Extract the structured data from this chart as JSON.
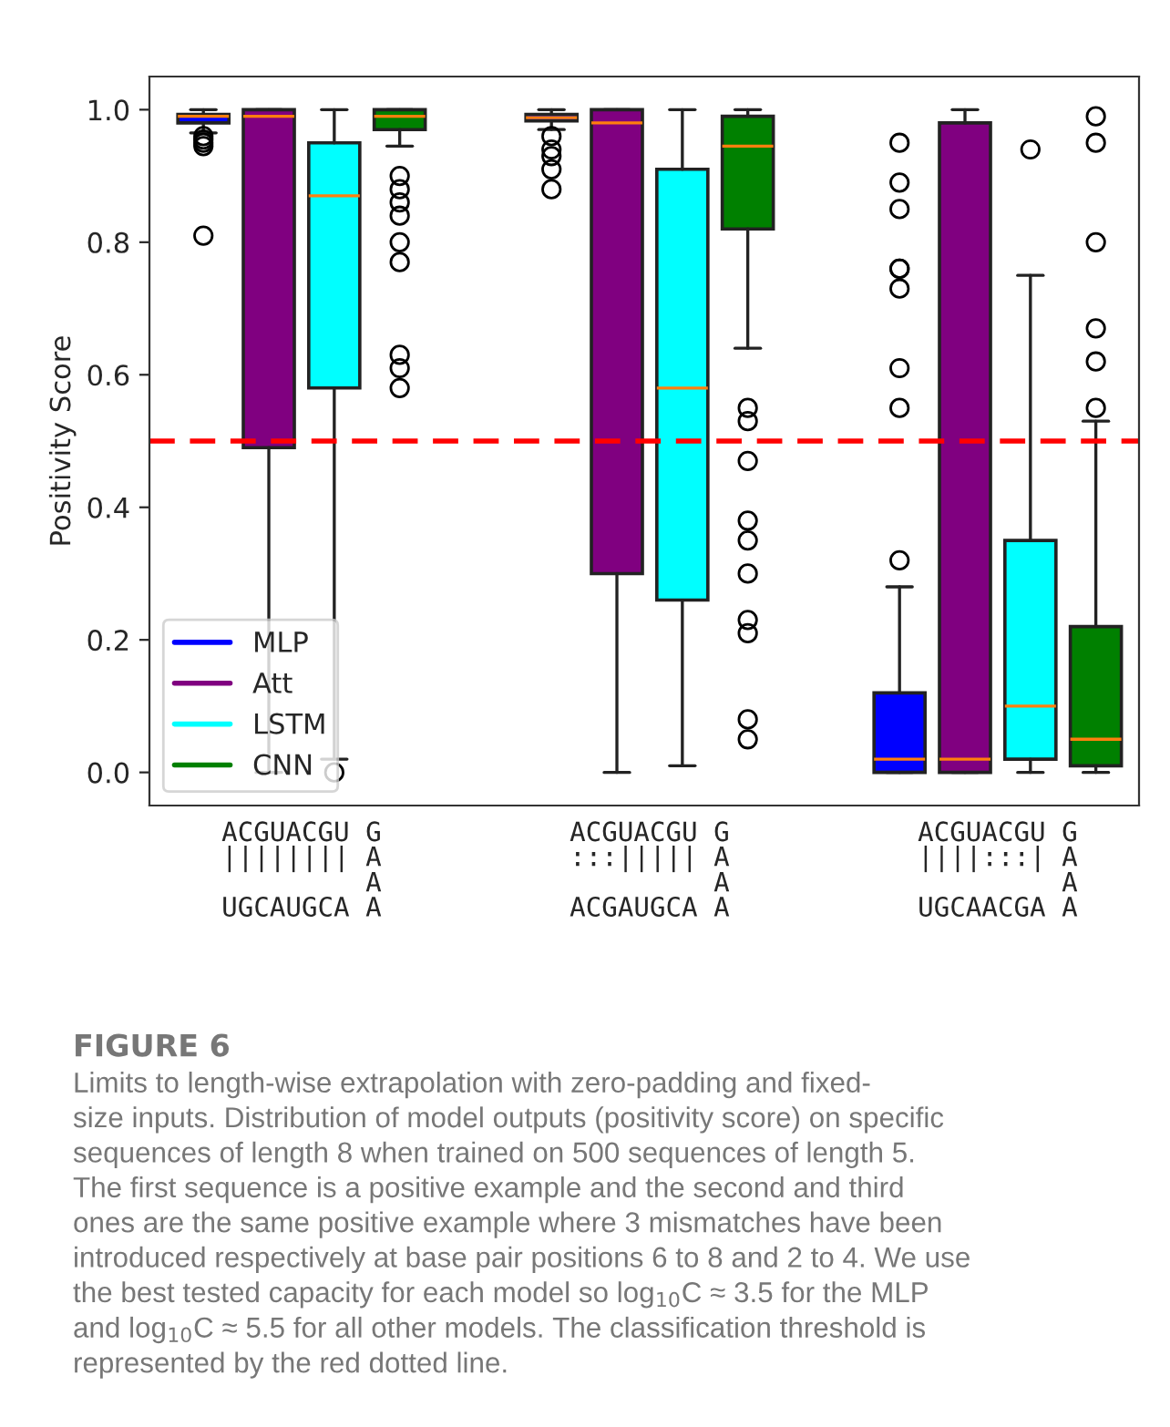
{
  "chart_data": {
    "type": "box",
    "ylabel": "Positivity Score",
    "categories": [
      "ACGUACGU G\n|||||||| A\n         A\nUGCAUGCA A",
      "ACGUACGU G\n:::||||| A\n         A\nACGAUGCA A",
      "ACGUACGU G\n||||:::| A\n         A\nUGCAACGA A"
    ],
    "series": [
      {
        "name": "MLP",
        "color": "#0000ff",
        "boxes": [
          {
            "low": 0.965,
            "q1": 0.98,
            "median": 0.99,
            "q3": 0.993,
            "high": 1.0,
            "outliers": [
              0.96,
              0.955,
              0.95,
              0.945,
              0.81
            ]
          },
          {
            "low": 0.97,
            "q1": 0.983,
            "median": 0.988,
            "q3": 0.993,
            "high": 1.0,
            "outliers": [
              0.96,
              0.94,
              0.93,
              0.91,
              0.88
            ]
          },
          {
            "low": 0.0,
            "q1": 0.0,
            "median": 0.02,
            "q3": 0.12,
            "high": 0.28,
            "outliers": [
              0.32,
              0.55,
              0.61,
              0.73,
              0.76,
              0.76,
              0.85,
              0.89,
              0.95
            ]
          }
        ]
      },
      {
        "name": "Att",
        "color": "#800080",
        "boxes": [
          {
            "low": 0.0,
            "q1": 0.49,
            "median": 0.99,
            "q3": 1.0,
            "high": 1.0
          },
          {
            "low": 0.0,
            "q1": 0.3,
            "median": 0.98,
            "q3": 1.0,
            "high": 1.0
          },
          {
            "low": 0.0,
            "q1": 0.0,
            "median": 0.02,
            "q3": 0.98,
            "high": 1.0
          }
        ]
      },
      {
        "name": "LSTM",
        "color": "#00ffff",
        "boxes": [
          {
            "low": 0.02,
            "q1": 0.58,
            "median": 0.87,
            "q3": 0.95,
            "high": 1.0,
            "outliers": [
              0.0
            ]
          },
          {
            "low": 0.01,
            "q1": 0.26,
            "median": 0.58,
            "q3": 0.91,
            "high": 1.0
          },
          {
            "low": 0.0,
            "q1": 0.02,
            "median": 0.1,
            "q3": 0.35,
            "high": 0.75,
            "outliers": [
              0.94
            ]
          }
        ]
      },
      {
        "name": "CNN",
        "color": "#008000",
        "boxes": [
          {
            "low": 0.945,
            "q1": 0.97,
            "median": 0.99,
            "q3": 1.0,
            "high": 1.0,
            "outliers": [
              0.9,
              0.88,
              0.86,
              0.84,
              0.8,
              0.77,
              0.63,
              0.61,
              0.58
            ]
          },
          {
            "low": 0.64,
            "q1": 0.82,
            "median": 0.945,
            "q3": 0.99,
            "high": 1.0,
            "outliers": [
              0.55,
              0.53,
              0.47,
              0.38,
              0.35,
              0.3,
              0.23,
              0.21,
              0.08,
              0.05
            ]
          },
          {
            "low": 0.0,
            "q1": 0.01,
            "median": 0.05,
            "q3": 0.22,
            "high": 0.53,
            "outliers": [
              0.99,
              0.95,
              0.8,
              0.67,
              0.62,
              0.55
            ]
          }
        ]
      }
    ],
    "ylim": [
      -0.05,
      1.05
    ],
    "yticks": [
      {
        "value": 0,
        "label": "0.0"
      },
      {
        "value": 0.2,
        "label": "0.2"
      },
      {
        "value": 0.4,
        "label": "0.4"
      },
      {
        "value": 0.6,
        "label": "0.6"
      },
      {
        "value": 0.8,
        "label": "0.8"
      },
      {
        "value": 1,
        "label": "1.0"
      }
    ],
    "ref_lines": [
      {
        "axis": "y",
        "value": 0.5,
        "color": "#ff0000",
        "line_style": "dashed"
      }
    ],
    "legend": "bottom left",
    "grid": false,
    "annotations": [
      "FIGURE 6",
      "Limits to length-wise extrapolation with zero-padding and fixed-\nsize inputs. Distribution of model outputs (positivity score) on specific\nsequences of length 8 when trained on 500 sequences of length 5.\nThe first sequence is a positive example and the second and third\nones are the same positive example where 3 mismatches have been\nintroduced respectively at base pair positions 6 to 8 and 2 to 4. We use\nthe best tested capacity for each model so log$_{10}$C ≈ 3.5 for the MLP\nand log$_{10}$C ≈ 5.5 for all other models. The classification threshold is\nrepresented by the red dotted line."
    ]
  }
}
